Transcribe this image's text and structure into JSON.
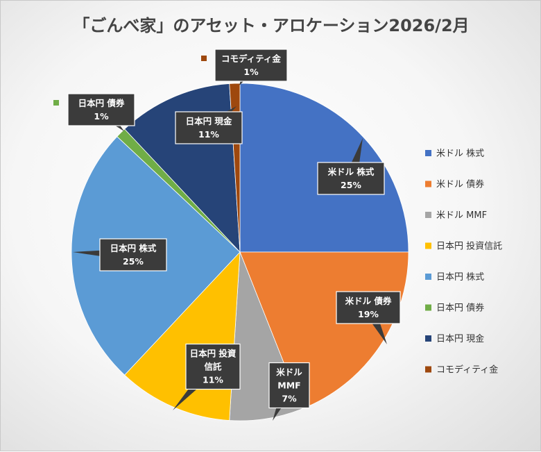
{
  "chart_data": {
    "type": "pie",
    "title": "「ごんべ家」のアセット・アロケーション2026/2月",
    "legend_position": "right",
    "series": [
      {
        "name": "米ドル 株式",
        "value": 25,
        "label": "25%",
        "color": "#4472C4"
      },
      {
        "name": "米ドル 債券",
        "value": 19,
        "label": "19%",
        "color": "#ED7D31"
      },
      {
        "name": "米ドル MMF",
        "value": 7,
        "label": "7%",
        "color": "#A5A5A5"
      },
      {
        "name": "日本円 投資信託",
        "value": 11,
        "label": "11%",
        "color": "#FFC000"
      },
      {
        "name": "日本円 株式",
        "value": 25,
        "label": "25%",
        "color": "#5B9BD5"
      },
      {
        "name": "日本円 債券",
        "value": 1,
        "label": "1%",
        "color": "#70AD47"
      },
      {
        "name": "日本円 現金",
        "value": 11,
        "label": "11%",
        "color": "#264478"
      },
      {
        "name": "コモディティ金",
        "value": 1,
        "label": "1%",
        "color": "#9E480E"
      }
    ],
    "callouts": [
      {
        "lines": [
          "米ドル 株式",
          "25%"
        ]
      },
      {
        "lines": [
          "米ドル 債券",
          "19%"
        ]
      },
      {
        "lines": [
          "米ドル",
          "MMF",
          "7%"
        ]
      },
      {
        "lines": [
          "日本円 投資",
          "信託",
          "11%"
        ]
      },
      {
        "lines": [
          "日本円 株式",
          "25%"
        ]
      },
      {
        "lines": [
          "日本円 債券",
          "1%"
        ]
      },
      {
        "lines": [
          "日本円 現金",
          "11%"
        ]
      },
      {
        "lines": [
          "コモディティ金",
          "1%"
        ]
      }
    ]
  }
}
